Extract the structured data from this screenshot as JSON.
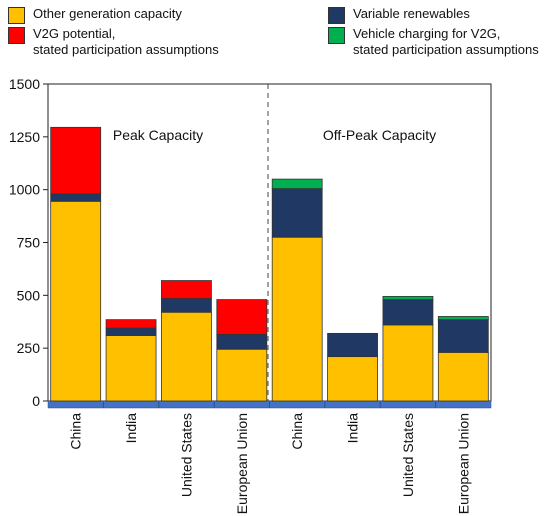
{
  "colors": {
    "other": "#FFC000",
    "variable": "#1F3864",
    "v2g": "#FF0000",
    "charging": "#00B050",
    "baseline": "#4472C4"
  },
  "legend": {
    "other_label": "Other generation capacity",
    "v2g_label_1": "V2G potential,",
    "v2g_label_2": "stated participation assumptions",
    "variable_label": "Variable renewables",
    "charging_label_1": "Vehicle charging for V2G,",
    "charging_label_2": "stated participation assumptions"
  },
  "chart_data": {
    "type": "bar",
    "stacked": true,
    "ylim": [
      0,
      1500
    ],
    "yticks": [
      "0",
      "250",
      "500",
      "750",
      "1000",
      "1250",
      "1500"
    ],
    "panels": [
      {
        "title": "Peak Capacity",
        "categories": [
          "China",
          "India",
          "United States",
          "European Union"
        ],
        "series": [
          {
            "name": "Other generation capacity",
            "values": [
              945,
              310,
              420,
              245
            ]
          },
          {
            "name": "Variable renewables",
            "values": [
              35,
              35,
              65,
              70
            ]
          },
          {
            "name": "V2G potential, stated participation assumptions",
            "values": [
              315,
              40,
              85,
              165
            ]
          }
        ]
      },
      {
        "title": "Off-Peak Capacity",
        "categories": [
          "China",
          "India",
          "United States",
          "European Union"
        ],
        "series": [
          {
            "name": "Other generation capacity",
            "values": [
              775,
              210,
              360,
              230
            ]
          },
          {
            "name": "Variable renewables",
            "values": [
              230,
              110,
              120,
              155
            ]
          },
          {
            "name": "Vehicle charging for V2G, stated participation assumptions",
            "values": [
              45,
              0,
              15,
              15
            ]
          }
        ]
      }
    ]
  }
}
